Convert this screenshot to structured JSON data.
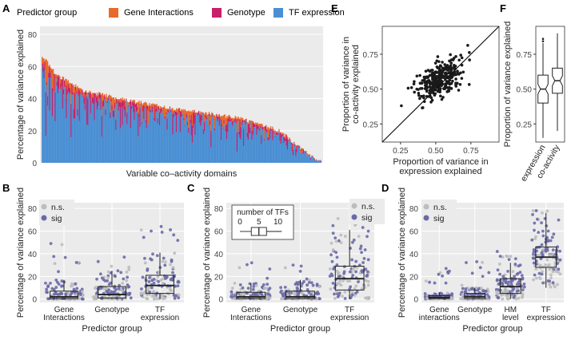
{
  "panel_letters": {
    "A": "A",
    "B": "B",
    "C": "C",
    "D": "D",
    "E": "E",
    "F": "F"
  },
  "colors": {
    "gene_interactions": "#e8692a",
    "genotype": "#c8206a",
    "tf_expression": "#4a8fd3",
    "ns": "#bdbdbd",
    "sig": "#6a6aa8",
    "panel_bg": "#ebebeb",
    "grid": "#ffffff",
    "scatter": "#1a1a1a"
  },
  "legend_A": {
    "title": "Predictor group",
    "items": [
      "Gene Interactions",
      "Genotype",
      "TF expression"
    ]
  },
  "legend_sig": {
    "ns": "n.s.",
    "sig": "sig"
  },
  "inset_C": {
    "title": "number of TFs",
    "ticks": [
      "0",
      "5",
      "10"
    ]
  },
  "chart_data": [
    {
      "panel": "A",
      "type": "bar",
      "stacked": true,
      "title": "",
      "xlabel": "Variable co–activity domains",
      "ylabel": "Percentage of variance explained",
      "ylim": [
        0,
        85
      ],
      "yticks": [
        0,
        20,
        40,
        60,
        80
      ],
      "n_bars": 300,
      "total_profile": [
        [
          0,
          67
        ],
        [
          0.05,
          55
        ],
        [
          0.15,
          45
        ],
        [
          0.3,
          39
        ],
        [
          0.5,
          33
        ],
        [
          0.7,
          28
        ],
        [
          0.85,
          20
        ],
        [
          0.95,
          6
        ],
        [
          1.0,
          0.5
        ]
      ],
      "series_share": [
        {
          "name": "Gene Interactions",
          "approx_fraction": 0.1
        },
        {
          "name": "Genotype",
          "approx_fraction": 0.18
        },
        {
          "name": "TF expression",
          "approx_fraction": 0.72
        }
      ]
    },
    {
      "panel": "B",
      "type": "box",
      "xlabel": "Predictor group",
      "ylabel": "Percentage of variance explained",
      "ylim": [
        -3,
        85
      ],
      "yticks": [
        0,
        20,
        40,
        60,
        80
      ],
      "categories": [
        "Gene\nInteractions",
        "Genotype",
        "TF\nexpression"
      ],
      "boxes": [
        {
          "q1": 0.5,
          "median": 2,
          "q3": 7,
          "whisker_low": 0,
          "whisker_high": 17
        },
        {
          "q1": 1,
          "median": 4,
          "q3": 11,
          "whisker_low": 0,
          "whisker_high": 25
        },
        {
          "q1": 5,
          "median": 12,
          "q3": 21,
          "whisker_low": 0,
          "whisker_high": 41
        }
      ],
      "point_max": [
        49,
        37,
        64
      ]
    },
    {
      "panel": "C",
      "type": "box",
      "xlabel": "Predictor group",
      "ylabel": "Percentage of variance explained",
      "ylim": [
        -3,
        85
      ],
      "yticks": [
        0,
        20,
        40,
        60,
        80
      ],
      "categories": [
        "Gene\nInteractions",
        "Genotype",
        "TF\nexpression"
      ],
      "boxes": [
        {
          "q1": 0.5,
          "median": 2,
          "q3": 6,
          "whisker_low": 0,
          "whisker_high": 14
        },
        {
          "q1": 0.5,
          "median": 2,
          "q3": 7,
          "whisker_low": 0,
          "whisker_high": 17
        },
        {
          "q1": 8,
          "median": 18,
          "q3": 29,
          "whisker_low": 0,
          "whisker_high": 61
        }
      ],
      "point_max": [
        32,
        30,
        71
      ],
      "inset_box": {
        "min": 0,
        "q1": 3,
        "median": 5,
        "q3": 7,
        "max": 11,
        "range": [
          0,
          12
        ]
      }
    },
    {
      "panel": "D",
      "type": "box",
      "xlabel": "Predictor group",
      "ylabel": "Percentage of variance explained",
      "ylim": [
        -3,
        85
      ],
      "yticks": [
        0,
        20,
        40,
        60,
        80
      ],
      "categories": [
        "Gene\ninteractions",
        "Genotype",
        "HM\nlevel",
        "TF\nexpression"
      ],
      "boxes": [
        {
          "q1": 0.5,
          "median": 1.5,
          "q3": 3,
          "whisker_low": 0,
          "whisker_high": 6
        },
        {
          "q1": 0.5,
          "median": 2,
          "q3": 5,
          "whisker_low": 0,
          "whisker_high": 10
        },
        {
          "q1": 5,
          "median": 11,
          "q3": 18,
          "whisker_low": 0,
          "whisker_high": 32
        },
        {
          "q1": 28,
          "median": 37,
          "q3": 46,
          "whisker_low": 10,
          "whisker_high": 76
        }
      ],
      "point_max": [
        27,
        33,
        42,
        78
      ]
    },
    {
      "panel": "E",
      "type": "scatter",
      "xlabel": "Proportion of variance in\nexpression explained",
      "ylabel": "Proportion of variance in\nco-activity explained",
      "xlim": [
        0.12,
        0.95
      ],
      "ylim": [
        0.12,
        0.95
      ],
      "xticks": [
        0.25,
        0.5,
        0.75
      ],
      "yticks": [
        0.25,
        0.5,
        0.75
      ],
      "diagonal": true,
      "n_points": 300,
      "x_center": 0.52,
      "y_center": 0.57
    },
    {
      "panel": "F",
      "type": "box",
      "notched": true,
      "ylabel": "Proportion of variance explained",
      "ylim": [
        0.12,
        0.95
      ],
      "yticks": [
        0.25,
        0.5,
        0.75
      ],
      "categories": [
        "expression",
        "co-activity"
      ],
      "boxes": [
        {
          "q1": 0.4,
          "median": 0.5,
          "q3": 0.6,
          "whisker_low": 0.15,
          "whisker_high": 0.83
        },
        {
          "q1": 0.47,
          "median": 0.56,
          "q3": 0.65,
          "whisker_low": 0.2,
          "whisker_high": 0.9
        }
      ],
      "outliers": [
        [
          0,
          0.86
        ]
      ]
    }
  ]
}
